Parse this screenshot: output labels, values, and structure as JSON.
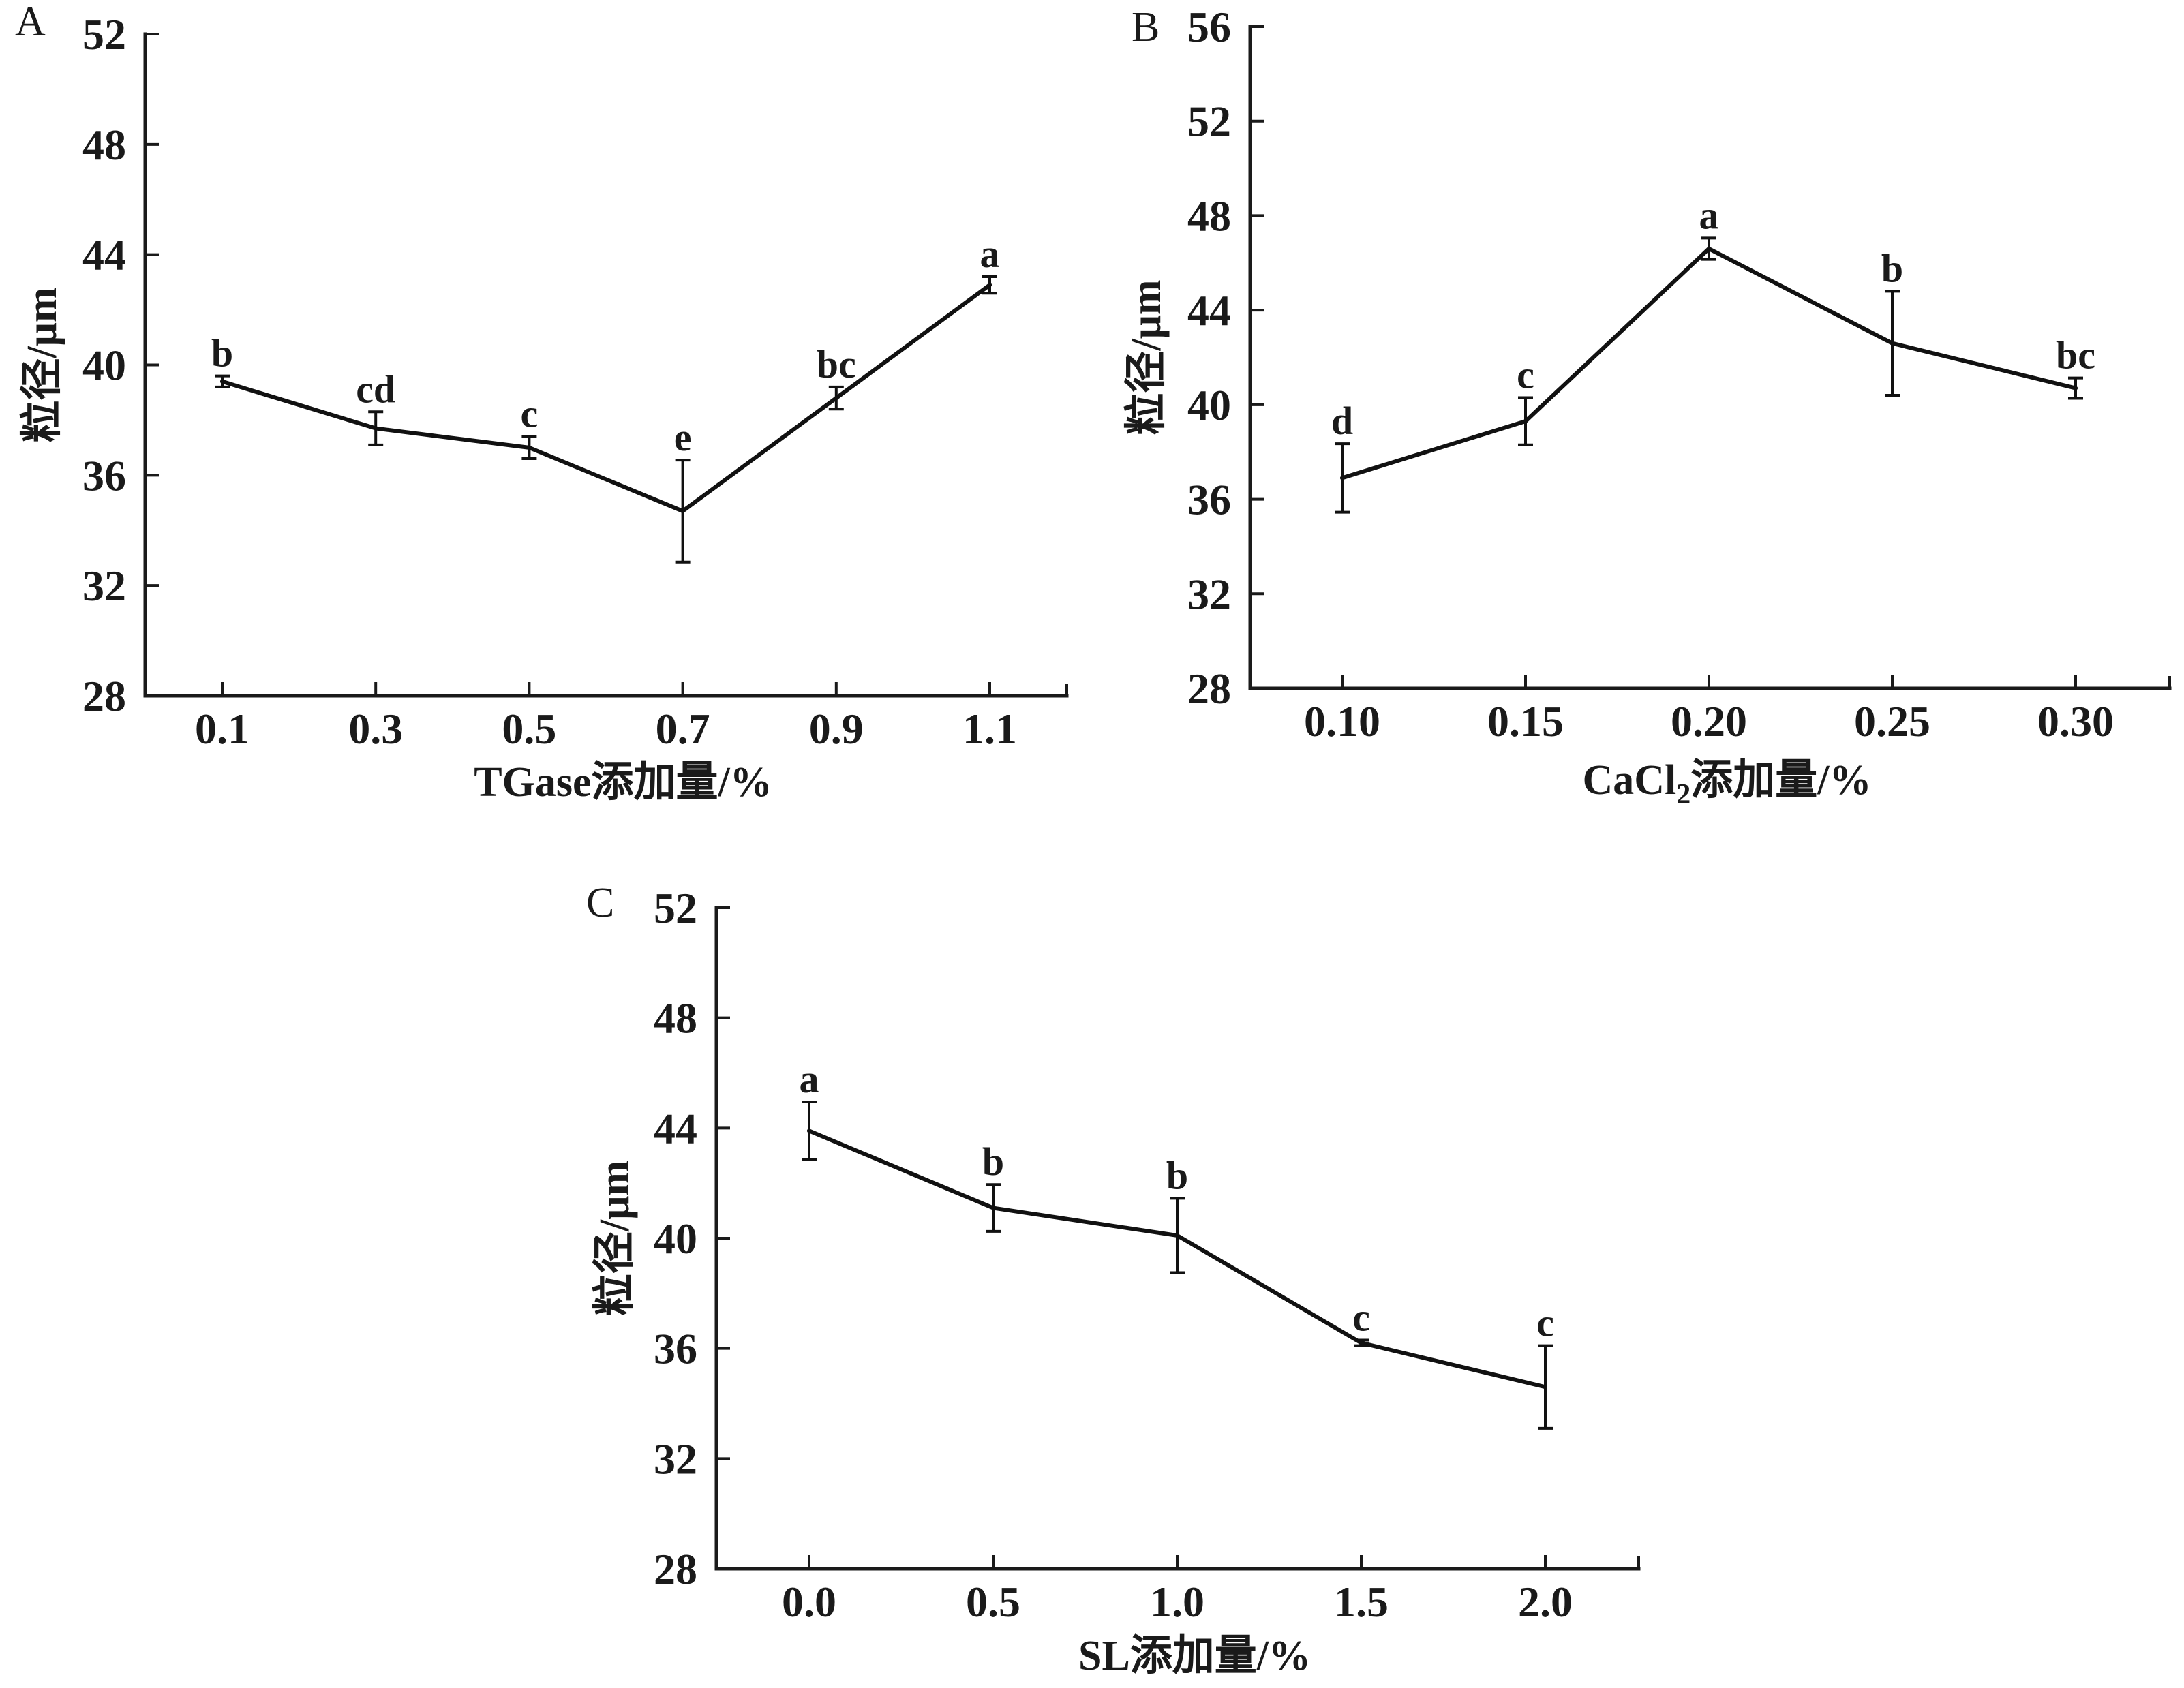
{
  "chart_data": [
    {
      "type": "line",
      "panel": "A",
      "title": "",
      "xlabel": "TGase添加量/%",
      "ylabel": "粒径/μm",
      "x": [
        0.1,
        0.3,
        0.5,
        0.7,
        0.9,
        1.1
      ],
      "x_tick_labels": [
        "0.1",
        "0.3",
        "0.5",
        "0.7",
        "0.9",
        "1.1"
      ],
      "ylim": [
        28,
        52
      ],
      "y_ticks": [
        28,
        32,
        36,
        40,
        44,
        48,
        52
      ],
      "y_tick_labels": [
        "28",
        "32",
        "36",
        "40",
        "44",
        "48",
        "52"
      ],
      "series": [
        {
          "name": "粒径",
          "values": [
            39.4,
            37.7,
            37.0,
            34.7,
            38.8,
            42.9
          ],
          "errors": [
            0.2,
            0.6,
            0.4,
            1.85,
            0.4,
            0.3
          ],
          "labels": [
            "b",
            "cd",
            "c",
            "e",
            "bc",
            "a"
          ]
        }
      ],
      "grid": false,
      "color": "#111111"
    },
    {
      "type": "line",
      "panel": "B",
      "title": "",
      "xlabel_parts": {
        "main": "CaCl",
        "sub": "2",
        "rest": "添加量/%"
      },
      "ylabel": "粒径/μm",
      "x": [
        0.1,
        0.15,
        0.2,
        0.25,
        0.3
      ],
      "x_tick_labels": [
        "0.10",
        "0.15",
        "0.20",
        "0.25",
        "0.30"
      ],
      "ylim": [
        28,
        56
      ],
      "y_ticks": [
        28,
        32,
        36,
        40,
        44,
        48,
        52,
        56
      ],
      "y_tick_labels": [
        "28",
        "32",
        "36",
        "40",
        "44",
        "48",
        "52",
        "56"
      ],
      "series": [
        {
          "name": "粒径",
          "values": [
            36.9,
            39.3,
            46.6,
            42.6,
            40.7
          ],
          "errors": [
            1.45,
            1.0,
            0.45,
            2.2,
            0.43
          ],
          "labels": [
            "d",
            "c",
            "a",
            "b",
            "bc"
          ]
        }
      ],
      "grid": false,
      "color": "#111111"
    },
    {
      "type": "line",
      "panel": "C",
      "title": "",
      "xlabel": "SL添加量/%",
      "ylabel": "粒径/μm",
      "x": [
        0.0,
        0.5,
        1.0,
        1.5,
        2.0
      ],
      "x_tick_labels": [
        "0.0",
        "0.5",
        "1.0",
        "1.5",
        "2.0"
      ],
      "ylim": [
        28,
        52
      ],
      "y_ticks": [
        28,
        32,
        36,
        40,
        44,
        48,
        52
      ],
      "y_tick_labels": [
        "28",
        "32",
        "36",
        "40",
        "44",
        "48",
        "52"
      ],
      "series": [
        {
          "name": "粒径",
          "values": [
            43.9,
            41.1,
            40.1,
            36.2,
            34.6
          ],
          "errors": [
            1.05,
            0.85,
            1.35,
            0.1,
            1.5
          ],
          "labels": [
            "a",
            "b",
            "b",
            "c",
            "c"
          ]
        }
      ],
      "grid": false,
      "color": "#111111"
    }
  ]
}
